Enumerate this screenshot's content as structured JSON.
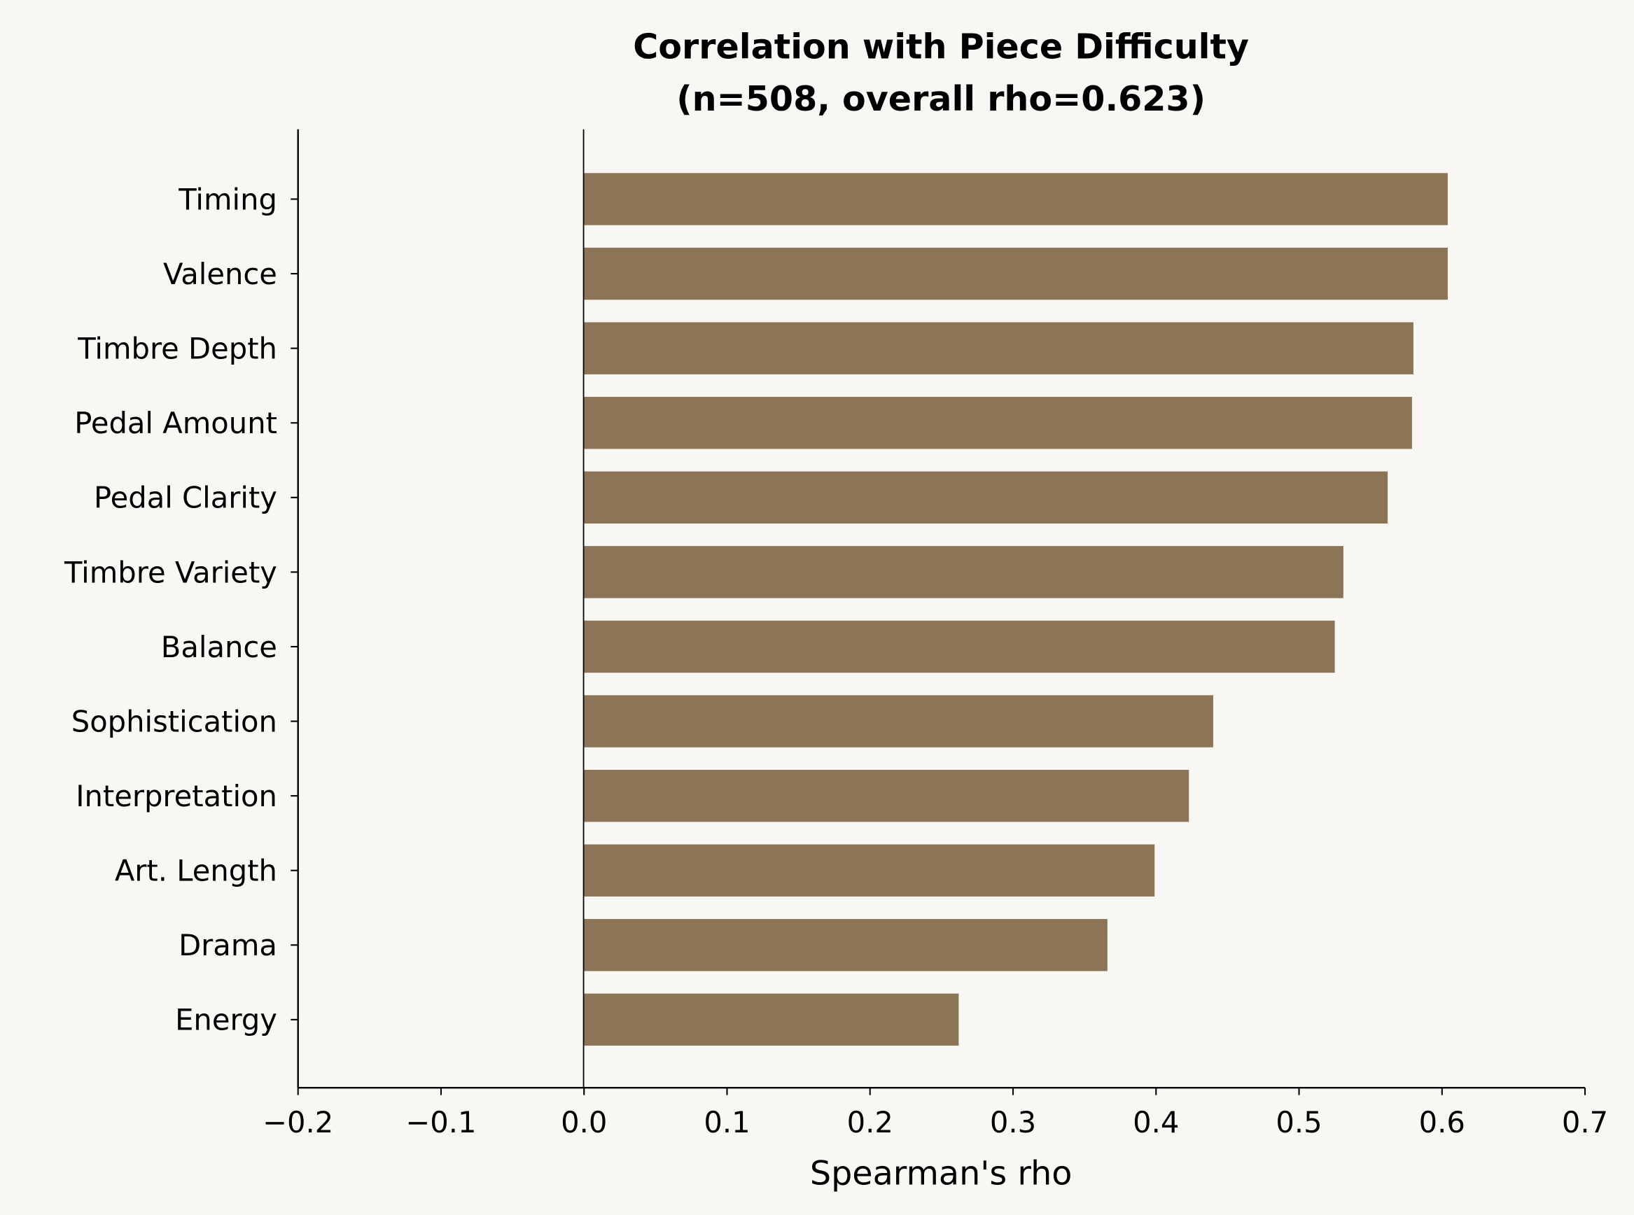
{
  "chart_data": {
    "type": "bar",
    "orientation": "horizontal",
    "title_line1": "Correlation with Piece Difficulty",
    "title_line2": "(n=508, overall rho=0.623)",
    "xlabel": "Spearman's rho",
    "ylabel": "",
    "xlim": [
      -0.2,
      0.7
    ],
    "xticks": [
      -0.2,
      -0.1,
      0.0,
      0.1,
      0.2,
      0.3,
      0.4,
      0.5,
      0.6,
      0.7
    ],
    "xtick_labels": [
      "−0.2",
      "−0.1",
      "0.0",
      "0.1",
      "0.2",
      "0.3",
      "0.4",
      "0.5",
      "0.6",
      "0.7"
    ],
    "categories": [
      "Timing",
      "Valence",
      "Timbre Depth",
      "Pedal Amount",
      "Pedal Clarity",
      "Timbre Variety",
      "Balance",
      "Sophistication",
      "Interpretation",
      "Art. Length",
      "Drama",
      "Energy"
    ],
    "values": [
      0.604,
      0.604,
      0.58,
      0.579,
      0.562,
      0.531,
      0.525,
      0.44,
      0.423,
      0.399,
      0.366,
      0.262
    ],
    "bar_color": "#8b7556",
    "background_color": "#f8f7f3",
    "zero_line": true,
    "grid": false,
    "legend": "none"
  }
}
